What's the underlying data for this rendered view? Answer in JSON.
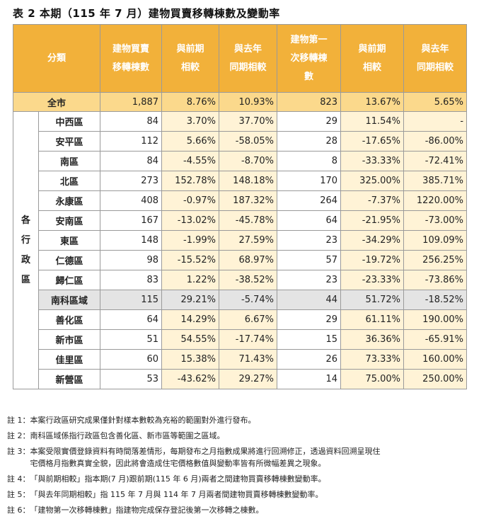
{
  "title": "表 2 本期（115 年 7 月）建物買賣移轉棟數及變動率",
  "headers": {
    "category": "分類",
    "transfers": [
      "建物買賣",
      "移轉棟數"
    ],
    "mom": [
      "與前期",
      "相較"
    ],
    "yoy": [
      "與去年",
      "同期相較"
    ],
    "first": [
      "建物第一",
      "次移轉棟",
      "數"
    ],
    "first_mom": [
      "與前期",
      "相較"
    ],
    "first_yoy": [
      "與去年",
      "同期相較"
    ]
  },
  "total": {
    "name": "全市",
    "transfers": "1,887",
    "mom": "8.76%",
    "yoy": "10.93%",
    "first": "823",
    "first_mom": "13.67%",
    "first_yoy": "5.65%"
  },
  "group_label": [
    "各",
    "行",
    "政",
    "區"
  ],
  "rows": [
    {
      "name": "中西區",
      "transfers": "84",
      "mom": "3.70%",
      "yoy": "37.70%",
      "first": "29",
      "first_mom": "11.54%",
      "first_yoy": "-"
    },
    {
      "name": "安平區",
      "transfers": "112",
      "mom": "5.66%",
      "yoy": "-58.05%",
      "first": "28",
      "first_mom": "-17.65%",
      "first_yoy": "-86.00%"
    },
    {
      "name": "南區",
      "transfers": "84",
      "mom": "-4.55%",
      "yoy": "-8.70%",
      "first": "8",
      "first_mom": "-33.33%",
      "first_yoy": "-72.41%"
    },
    {
      "name": "北區",
      "transfers": "273",
      "mom": "152.78%",
      "yoy": "148.18%",
      "first": "170",
      "first_mom": "325.00%",
      "first_yoy": "385.71%"
    },
    {
      "name": "永康區",
      "transfers": "408",
      "mom": "-0.97%",
      "yoy": "187.32%",
      "first": "264",
      "first_mom": "-7.37%",
      "first_yoy": "1220.00%"
    },
    {
      "name": "安南區",
      "transfers": "167",
      "mom": "-13.02%",
      "yoy": "-45.78%",
      "first": "64",
      "first_mom": "-21.95%",
      "first_yoy": "-73.00%"
    },
    {
      "name": "東區",
      "transfers": "148",
      "mom": "-1.99%",
      "yoy": "27.59%",
      "first": "23",
      "first_mom": "-34.29%",
      "first_yoy": "109.09%"
    },
    {
      "name": "仁德區",
      "transfers": "98",
      "mom": "-15.52%",
      "yoy": "68.97%",
      "first": "57",
      "first_mom": "-19.72%",
      "first_yoy": "256.25%"
    },
    {
      "name": "歸仁區",
      "transfers": "83",
      "mom": "1.22%",
      "yoy": "-38.52%",
      "first": "23",
      "first_mom": "-23.33%",
      "first_yoy": "-73.86%"
    }
  ],
  "subregion": {
    "name": "南科區域",
    "transfers": "115",
    "mom": "29.21%",
    "yoy": "-5.74%",
    "first": "44",
    "first_mom": "51.72%",
    "first_yoy": "-18.52%"
  },
  "sub_rows": [
    {
      "name": "善化區",
      "transfers": "64",
      "mom": "14.29%",
      "yoy": "6.67%",
      "first": "29",
      "first_mom": "61.11%",
      "first_yoy": "190.00%"
    },
    {
      "name": "新市區",
      "transfers": "51",
      "mom": "54.55%",
      "yoy": "-17.74%",
      "first": "15",
      "first_mom": "36.36%",
      "first_yoy": "-65.91%"
    },
    {
      "name": "佳里區",
      "transfers": "60",
      "mom": "15.38%",
      "yoy": "71.43%",
      "first": "26",
      "first_mom": "73.33%",
      "first_yoy": "160.00%"
    },
    {
      "name": "新營區",
      "transfers": "53",
      "mom": "-43.62%",
      "yoy": "29.27%",
      "first": "14",
      "first_mom": "75.00%",
      "first_yoy": "250.00%"
    }
  ],
  "notes": [
    {
      "label": "註 1：",
      "lines": [
        "本案行政區研究成果僅針對樣本數較為充裕的範圍對外進行發布。"
      ]
    },
    {
      "label": "註 2：",
      "lines": [
        "南科區域係指行政區包含善化區、新市區等範圍之區域。"
      ]
    },
    {
      "label": "註 3：",
      "lines": [
        "本案受限實價登錄資料有時間落差情形，每期發布之月指數成果將進行回溯修正，透過資料回溯呈現住",
        "宅價格月指數真實全貌，因此將會造成住宅價格數值與變動率皆有所微幅差異之現象。"
      ]
    },
    {
      "label": "註 4：",
      "lines": [
        "「與前期相較」指本期(7 月)跟前期(115 年 6 月)兩者之間建物買賣移轉棟數變動率。"
      ]
    },
    {
      "label": "註 5：",
      "lines": [
        "「與去年同期相較」指 115 年 7 月與 114 年 7 月兩者間建物買賣移轉棟數變動率。"
      ]
    },
    {
      "label": "註 6：",
      "lines": [
        "「建物第一次移轉棟數」指建物完成保存登記後第一次移轉之棟數。"
      ]
    }
  ],
  "colors": {
    "header": "#f2b13a",
    "total_row": "#fbd98c",
    "rate_cell": "#fff3d6",
    "subregion_row": "#e4e4e4"
  }
}
